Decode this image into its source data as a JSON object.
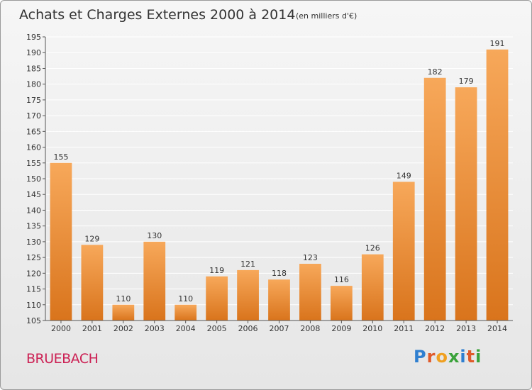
{
  "chart_data": {
    "type": "bar",
    "title": "Achats et Charges Externes 2000 à 2014",
    "subtitle": "(en milliers d'€)",
    "categories": [
      "2000",
      "2001",
      "2002",
      "2003",
      "2004",
      "2005",
      "2006",
      "2007",
      "2008",
      "2009",
      "2010",
      "2011",
      "2012",
      "2013",
      "2014"
    ],
    "values": [
      155,
      129,
      110,
      130,
      110,
      119,
      121,
      118,
      123,
      116,
      126,
      149,
      182,
      179,
      191
    ],
    "ylim": [
      105,
      195
    ],
    "yticks": [
      105,
      110,
      115,
      120,
      125,
      130,
      135,
      140,
      145,
      150,
      155,
      160,
      165,
      170,
      175,
      180,
      185,
      190,
      195
    ],
    "grid": true,
    "xlabel": "",
    "ylabel": "",
    "colors": {
      "bar_light": "#f7a85a",
      "bar_dark": "#d9741c",
      "grid": "#ffffff",
      "axis": "#555555"
    }
  },
  "place_name": "BRUEBACH",
  "brand": {
    "name": "Proxiti",
    "letters": [
      {
        "ch": "P",
        "color": "#2f7fd0"
      },
      {
        "ch": "r",
        "color": "#e05a2a"
      },
      {
        "ch": "o",
        "color": "#f0a020"
      },
      {
        "ch": "x",
        "color": "#3aa23a"
      },
      {
        "ch": "i",
        "color": "#2f7fd0"
      },
      {
        "ch": "t",
        "color": "#e05a2a"
      },
      {
        "ch": "i",
        "color": "#3aa23a"
      }
    ]
  }
}
